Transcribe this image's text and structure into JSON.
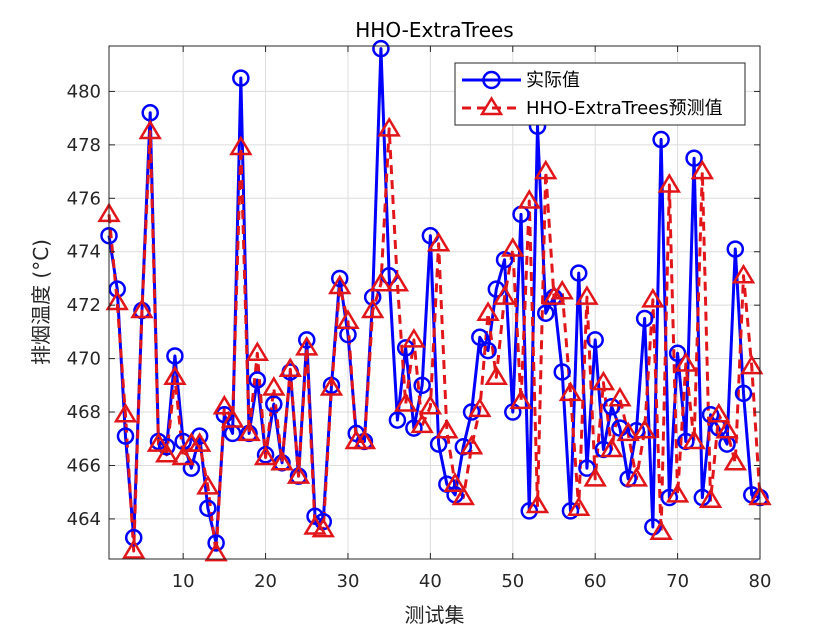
{
  "chart_data": {
    "type": "line",
    "title": "HHO-ExtraTrees",
    "xlabel": "测试集",
    "ylabel": "排烟温度 (°C)",
    "xlim": [
      1,
      80
    ],
    "ylim": [
      462.5,
      481.7
    ],
    "xticks": [
      10,
      20,
      30,
      40,
      50,
      60,
      70,
      80
    ],
    "yticks": [
      464,
      466,
      468,
      470,
      472,
      474,
      476,
      478,
      480
    ],
    "grid": true,
    "legend_position": "top-right",
    "x": [
      1,
      2,
      3,
      4,
      5,
      6,
      7,
      8,
      9,
      10,
      11,
      12,
      13,
      14,
      15,
      16,
      17,
      18,
      19,
      20,
      21,
      22,
      23,
      24,
      25,
      26,
      27,
      28,
      29,
      30,
      31,
      32,
      33,
      34,
      35,
      36,
      37,
      38,
      39,
      40,
      41,
      42,
      43,
      44,
      45,
      46,
      47,
      48,
      49,
      50,
      51,
      52,
      53,
      54,
      55,
      56,
      57,
      58,
      59,
      60,
      61,
      62,
      63,
      64,
      65,
      66,
      67,
      68,
      69,
      70,
      71,
      72,
      73,
      74,
      75,
      76,
      77,
      78,
      79,
      80
    ],
    "series": [
      {
        "name": "实际值",
        "color": "#0000ff",
        "marker": "circle",
        "line_style": "solid",
        "values": [
          474.6,
          472.6,
          467.1,
          463.3,
          471.8,
          479.2,
          466.9,
          466.7,
          470.1,
          466.9,
          465.9,
          467.1,
          464.4,
          463.1,
          467.9,
          467.2,
          480.5,
          467.2,
          469.2,
          466.4,
          468.3,
          466.1,
          469.5,
          465.6,
          470.7,
          464.1,
          463.9,
          469.0,
          473.0,
          470.9,
          467.2,
          466.9,
          472.3,
          481.6,
          473.1,
          467.7,
          470.4,
          467.4,
          469.0,
          474.6,
          466.8,
          465.3,
          464.9,
          466.7,
          468.0,
          470.8,
          470.3,
          472.6,
          473.7,
          468.0,
          475.4,
          464.3,
          478.7,
          471.7,
          472.3,
          469.5,
          464.3,
          473.2,
          465.9,
          470.7,
          466.6,
          468.2,
          467.4,
          465.5,
          467.3,
          471.5,
          463.7,
          478.2,
          464.8,
          470.2,
          466.9,
          477.5,
          464.8,
          467.9,
          467.4,
          466.8,
          474.1,
          468.7,
          464.9,
          464.8
        ]
      },
      {
        "name": "HHO-ExtraTrees预测值",
        "color": "#e0161b",
        "marker": "triangle",
        "line_style": "dashed",
        "values": [
          475.4,
          472.1,
          467.9,
          462.8,
          471.8,
          478.5,
          466.8,
          466.4,
          469.3,
          466.3,
          466.8,
          466.8,
          465.2,
          462.7,
          468.2,
          467.7,
          477.9,
          467.2,
          470.2,
          466.3,
          468.9,
          466.1,
          469.6,
          465.6,
          470.4,
          463.7,
          463.6,
          468.9,
          472.7,
          471.4,
          466.9,
          466.9,
          471.8,
          472.8,
          478.6,
          472.8,
          468.3,
          470.7,
          467.5,
          468.2,
          474.3,
          467.3,
          465.3,
          464.8,
          466.7,
          468.1,
          471.7,
          469.3,
          472.3,
          474.1,
          468.4,
          475.9,
          464.5,
          477.0,
          472.3,
          472.5,
          468.7,
          464.4,
          472.3,
          465.5,
          469.1,
          466.6,
          468.5,
          467.2,
          465.5,
          467.3,
          472.2,
          463.5,
          476.5,
          464.9,
          469.8,
          466.9,
          477.0,
          464.7,
          467.9,
          467.3,
          466.1,
          473.1,
          469.7,
          464.8
        ]
      }
    ]
  }
}
